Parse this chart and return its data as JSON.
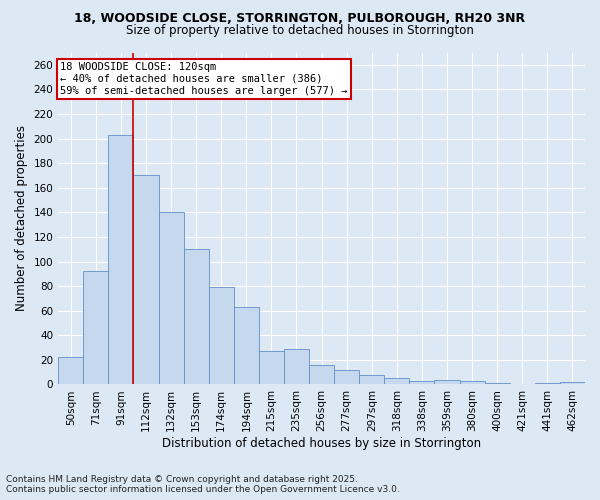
{
  "title_line1": "18, WOODSIDE CLOSE, STORRINGTON, PULBOROUGH, RH20 3NR",
  "title_line2": "Size of property relative to detached houses in Storrington",
  "xlabel": "Distribution of detached houses by size in Storrington",
  "ylabel": "Number of detached properties",
  "footnote1": "Contains HM Land Registry data © Crown copyright and database right 2025.",
  "footnote2": "Contains public sector information licensed under the Open Government Licence v3.0.",
  "bins": [
    "50sqm",
    "71sqm",
    "91sqm",
    "112sqm",
    "132sqm",
    "153sqm",
    "174sqm",
    "194sqm",
    "215sqm",
    "235sqm",
    "256sqm",
    "277sqm",
    "297sqm",
    "318sqm",
    "338sqm",
    "359sqm",
    "380sqm",
    "400sqm",
    "421sqm",
    "441sqm",
    "462sqm"
  ],
  "values": [
    22,
    92,
    203,
    170,
    140,
    110,
    79,
    63,
    27,
    29,
    16,
    12,
    8,
    5,
    3,
    4,
    3,
    1,
    0,
    1,
    2
  ],
  "bar_color": "#c5d8ed",
  "bar_edge_color": "#6090c8",
  "property_line_x": 3.0,
  "annotation_line1": "18 WOODSIDE CLOSE: 120sqm",
  "annotation_line2": "← 40% of detached houses are smaller (386)",
  "annotation_line3": "59% of semi-detached houses are larger (577) →",
  "ylim": [
    0,
    270
  ],
  "yticks": [
    0,
    20,
    40,
    60,
    80,
    100,
    120,
    140,
    160,
    180,
    200,
    220,
    240,
    260
  ],
  "red_line_color": "#cc0000",
  "annotation_box_edge_color": "#cc0000",
  "background_color": "#dde8f5",
  "plot_bg_color": "#dde8f5",
  "title1_fontsize": 9,
  "title2_fontsize": 8.5,
  "xlabel_fontsize": 8.5,
  "ylabel_fontsize": 8.5,
  "tick_fontsize": 7.5,
  "annot_fontsize": 7.5,
  "footnote_fontsize": 6.5
}
